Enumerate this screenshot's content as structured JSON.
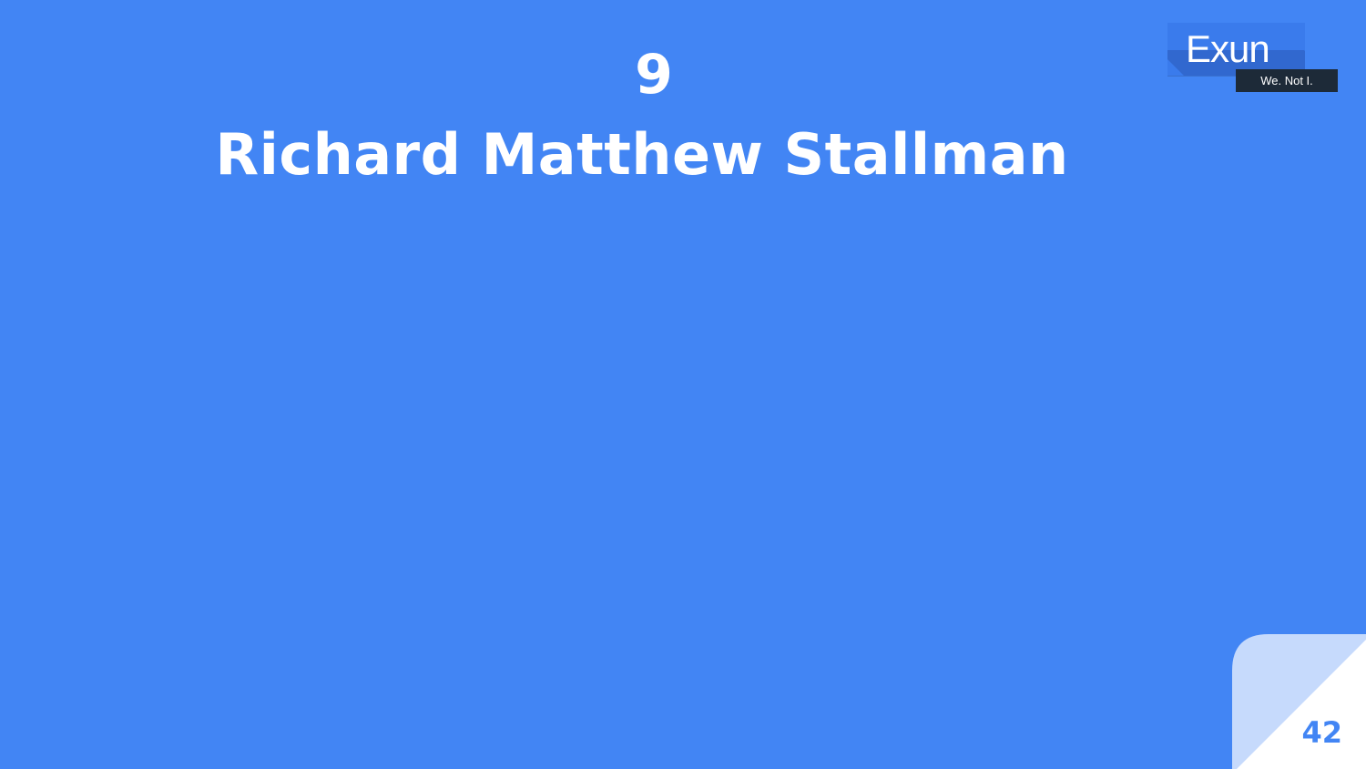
{
  "slide": {
    "number_heading": "9",
    "title": "Richard Matthew Stallman",
    "page_number": "42"
  },
  "logo": {
    "name": "Exun",
    "tagline": "We. Not I."
  },
  "colors": {
    "background": "#4285f4",
    "text": "#ffffff",
    "corner_light": "#c6dafc",
    "corner_white": "#ffffff",
    "logo_tag_bg": "#1d2a38"
  }
}
